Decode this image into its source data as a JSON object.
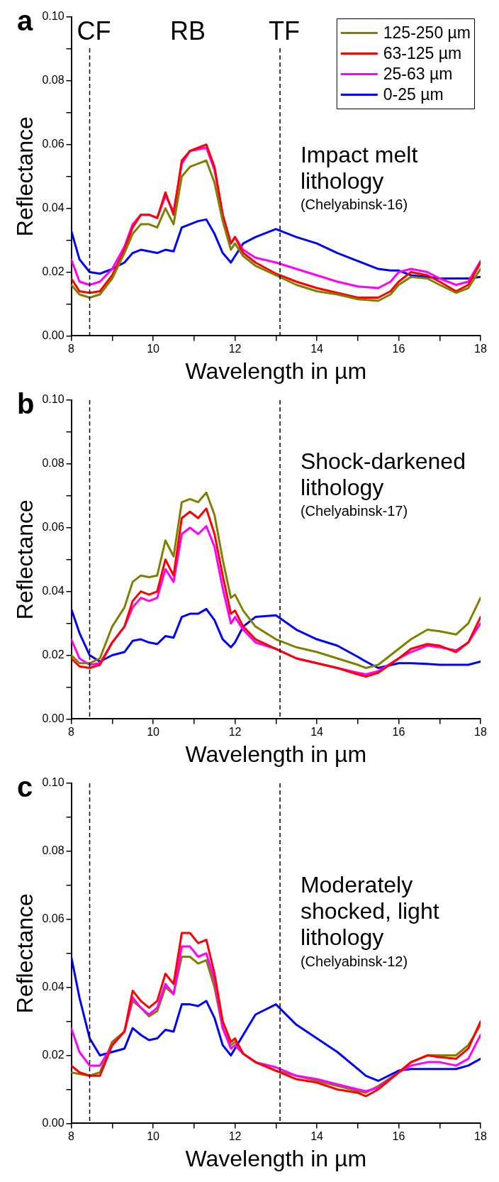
{
  "chart_data": [
    {
      "type": "line",
      "title": "a",
      "xlabel": "Wavelength in µm",
      "ylabel": "Reflectance",
      "x": [
        8,
        8.2,
        8.45,
        8.7,
        9,
        9.3,
        9.5,
        9.7,
        9.9,
        10.1,
        10.3,
        10.5,
        10.7,
        10.9,
        11.1,
        11.3,
        11.5,
        11.7,
        11.9,
        12,
        12.2,
        12.5,
        13,
        13.5,
        14,
        14.5,
        15,
        15.5,
        15.8,
        16,
        16.3,
        16.7,
        17,
        17.4,
        17.7,
        18
      ],
      "series": [
        {
          "name": "125-250 µm",
          "color": "#808000",
          "values": [
            0.016,
            0.013,
            0.012,
            0.013,
            0.018,
            0.026,
            0.032,
            0.035,
            0.035,
            0.034,
            0.04,
            0.035,
            0.05,
            0.053,
            0.054,
            0.055,
            0.048,
            0.036,
            0.027,
            0.029,
            0.025,
            0.022,
            0.019,
            0.016,
            0.014,
            0.013,
            0.0115,
            0.011,
            0.013,
            0.016,
            0.0185,
            0.018,
            0.016,
            0.0135,
            0.015,
            0.021
          ]
        },
        {
          "name": "63-125 µm",
          "color": "#ff0000",
          "values": [
            0.018,
            0.014,
            0.0135,
            0.014,
            0.019,
            0.027,
            0.034,
            0.038,
            0.038,
            0.037,
            0.045,
            0.038,
            0.055,
            0.058,
            0.059,
            0.06,
            0.053,
            0.038,
            0.029,
            0.031,
            0.026,
            0.023,
            0.0195,
            0.017,
            0.015,
            0.0135,
            0.012,
            0.012,
            0.014,
            0.017,
            0.02,
            0.019,
            0.017,
            0.014,
            0.016,
            0.023
          ]
        },
        {
          "name": "25-63 µm",
          "color": "#ff00ff",
          "values": [
            0.024,
            0.017,
            0.016,
            0.017,
            0.021,
            0.028,
            0.035,
            0.038,
            0.038,
            0.037,
            0.044,
            0.039,
            0.054,
            0.058,
            0.0585,
            0.059,
            0.052,
            0.038,
            0.029,
            0.031,
            0.027,
            0.0245,
            0.023,
            0.021,
            0.019,
            0.017,
            0.0155,
            0.015,
            0.017,
            0.02,
            0.021,
            0.02,
            0.018,
            0.016,
            0.017,
            0.0235
          ]
        },
        {
          "name": "0-25 µm",
          "color": "#0000ff",
          "values": [
            0.033,
            0.024,
            0.02,
            0.0195,
            0.021,
            0.023,
            0.026,
            0.027,
            0.0265,
            0.026,
            0.027,
            0.0265,
            0.034,
            0.035,
            0.036,
            0.0365,
            0.032,
            0.026,
            0.023,
            0.025,
            0.029,
            0.031,
            0.0335,
            0.031,
            0.029,
            0.026,
            0.0235,
            0.021,
            0.0205,
            0.0205,
            0.019,
            0.0185,
            0.018,
            0.018,
            0.018,
            0.0185
          ]
        }
      ],
      "xlim": [
        8,
        18
      ],
      "xticks": [
        8,
        {
          "value": 9,
          "label": null
        },
        10,
        {
          "value": 11,
          "label": null
        },
        12,
        {
          "value": 13,
          "label": null
        },
        14,
        {
          "value": 15,
          "label": null
        },
        16,
        {
          "value": 17,
          "label": null
        },
        18
      ],
      "ylim": [
        0,
        0.1
      ],
      "yticks": [
        {
          "value": 0,
          "label": "0.00"
        },
        {
          "value": 0.01,
          "label": null
        },
        {
          "value": 0.02,
          "label": "0.02"
        },
        {
          "value": 0.03,
          "label": null
        },
        {
          "value": 0.04,
          "label": "0.04"
        },
        {
          "value": 0.05,
          "label": null
        },
        {
          "value": 0.06,
          "label": "0.06"
        },
        {
          "value": 0.07,
          "label": null
        },
        {
          "value": 0.08,
          "label": "0.08"
        },
        {
          "value": 0.09,
          "label": null
        },
        {
          "value": 0.1,
          "label": "0.10"
        }
      ],
      "ref_lines": [
        {
          "axis": "x",
          "value": 8.45,
          "label": "CF",
          "line_style": "dashed",
          "color": "#000000"
        },
        {
          "axis": "x",
          "value": 13.1,
          "label": "TF",
          "line_style": "dashed",
          "color": "#000000"
        }
      ],
      "annotations": [
        "RB",
        "Impact melt lithology",
        "(Chelyabinsk-16)"
      ],
      "legend": "top right",
      "grid": false
    },
    {
      "type": "line",
      "title": "b",
      "xlabel": "Wavelength in µm",
      "ylabel": "Reflectance",
      "x": [
        8,
        8.2,
        8.45,
        8.7,
        9,
        9.3,
        9.5,
        9.7,
        9.9,
        10.1,
        10.3,
        10.5,
        10.7,
        10.9,
        11.1,
        11.3,
        11.5,
        11.7,
        11.9,
        12,
        12.2,
        12.5,
        13,
        13.5,
        14,
        14.5,
        15,
        15.2,
        15.5,
        16,
        16.3,
        16.7,
        17,
        17.4,
        17.7,
        18
      ],
      "series": [
        {
          "color": "#808000",
          "values": [
            0.02,
            0.0175,
            0.0175,
            0.019,
            0.029,
            0.035,
            0.043,
            0.045,
            0.0445,
            0.045,
            0.056,
            0.051,
            0.068,
            0.069,
            0.068,
            0.071,
            0.064,
            0.05,
            0.038,
            0.039,
            0.034,
            0.029,
            0.025,
            0.0225,
            0.021,
            0.019,
            0.017,
            0.016,
            0.017,
            0.022,
            0.025,
            0.028,
            0.0275,
            0.0265,
            0.03,
            0.038
          ]
        },
        {
          "color": "#ff0000",
          "values": [
            0.019,
            0.0165,
            0.016,
            0.017,
            0.024,
            0.029,
            0.037,
            0.04,
            0.039,
            0.04,
            0.05,
            0.045,
            0.063,
            0.065,
            0.063,
            0.066,
            0.058,
            0.045,
            0.033,
            0.034,
            0.029,
            0.025,
            0.022,
            0.019,
            0.0175,
            0.016,
            0.014,
            0.0133,
            0.0145,
            0.019,
            0.022,
            0.0235,
            0.023,
            0.021,
            0.024,
            0.032
          ]
        },
        {
          "color": "#ff00ff",
          "values": [
            0.025,
            0.019,
            0.017,
            0.0175,
            0.024,
            0.029,
            0.035,
            0.038,
            0.037,
            0.038,
            0.047,
            0.043,
            0.058,
            0.06,
            0.058,
            0.0605,
            0.054,
            0.041,
            0.03,
            0.032,
            0.028,
            0.024,
            0.022,
            0.019,
            0.0175,
            0.016,
            0.0145,
            0.014,
            0.015,
            0.019,
            0.021,
            0.023,
            0.0225,
            0.0215,
            0.024,
            0.03
          ]
        },
        {
          "color": "#0000ff",
          "values": [
            0.0345,
            0.027,
            0.02,
            0.018,
            0.02,
            0.021,
            0.0245,
            0.025,
            0.024,
            0.0235,
            0.026,
            0.0255,
            0.032,
            0.033,
            0.033,
            0.0345,
            0.031,
            0.025,
            0.0225,
            0.024,
            0.029,
            0.032,
            0.0325,
            0.028,
            0.025,
            0.023,
            0.0195,
            0.018,
            0.016,
            0.0175,
            0.0175,
            0.0173,
            0.017,
            0.017,
            0.017,
            0.018
          ]
        }
      ],
      "xlim": [
        8,
        18
      ],
      "xticks": [
        8,
        {
          "value": 9,
          "label": null
        },
        10,
        {
          "value": 11,
          "label": null
        },
        12,
        {
          "value": 13,
          "label": null
        },
        14,
        {
          "value": 15,
          "label": null
        },
        16,
        {
          "value": 17,
          "label": null
        },
        18
      ],
      "ylim": [
        0,
        0.1
      ],
      "yticks": [
        {
          "value": 0,
          "label": "0.00"
        },
        {
          "value": 0.01,
          "label": null
        },
        {
          "value": 0.02,
          "label": "0.02"
        },
        {
          "value": 0.03,
          "label": null
        },
        {
          "value": 0.04,
          "label": "0.04"
        },
        {
          "value": 0.05,
          "label": null
        },
        {
          "value": 0.06,
          "label": "0.06"
        },
        {
          "value": 0.07,
          "label": null
        },
        {
          "value": 0.08,
          "label": "0.08"
        },
        {
          "value": 0.09,
          "label": null
        },
        {
          "value": 0.1,
          "label": "0.10"
        }
      ],
      "ref_lines": [
        {
          "axis": "x",
          "value": 8.45,
          "line_style": "dashed",
          "color": "#000000"
        },
        {
          "axis": "x",
          "value": 13.1,
          "line_style": "dashed",
          "color": "#000000"
        }
      ],
      "annotations": [
        "Shock-darkened lithology",
        "(Chelyabinsk-17)"
      ],
      "grid": false
    },
    {
      "type": "line",
      "title": "c",
      "xlabel": "Wavelength in µm",
      "ylabel": "Reflectance",
      "x": [
        8,
        8.2,
        8.45,
        8.7,
        9,
        9.3,
        9.5,
        9.7,
        9.9,
        10.1,
        10.3,
        10.5,
        10.7,
        10.9,
        11.1,
        11.3,
        11.5,
        11.7,
        11.9,
        12,
        12.2,
        12.5,
        13,
        13.5,
        14,
        14.5,
        15,
        15.2,
        15.5,
        16,
        16.3,
        16.7,
        17,
        17.4,
        17.7,
        18
      ],
      "series": [
        {
          "color": "#ff0000",
          "values": [
            0.017,
            0.015,
            0.014,
            0.014,
            0.023,
            0.027,
            0.039,
            0.036,
            0.034,
            0.036,
            0.044,
            0.041,
            0.056,
            0.056,
            0.053,
            0.054,
            0.044,
            0.03,
            0.024,
            0.025,
            0.0205,
            0.018,
            0.0155,
            0.013,
            0.012,
            0.01,
            0.009,
            0.008,
            0.01,
            0.015,
            0.018,
            0.02,
            0.0195,
            0.019,
            0.022,
            0.03
          ]
        },
        {
          "color": "#ff00ff",
          "values": [
            0.028,
            0.021,
            0.017,
            0.017,
            0.023,
            0.027,
            0.037,
            0.034,
            0.032,
            0.034,
            0.041,
            0.038,
            0.052,
            0.052,
            0.049,
            0.05,
            0.042,
            0.028,
            0.022,
            0.023,
            0.0205,
            0.018,
            0.0165,
            0.014,
            0.013,
            0.0115,
            0.01,
            0.0095,
            0.0105,
            0.015,
            0.017,
            0.018,
            0.018,
            0.017,
            0.019,
            0.026
          ]
        },
        {
          "color": "#0000ff",
          "values": [
            0.049,
            0.037,
            0.025,
            0.02,
            0.021,
            0.022,
            0.028,
            0.026,
            0.0245,
            0.025,
            0.0275,
            0.027,
            0.035,
            0.035,
            0.0345,
            0.036,
            0.031,
            0.023,
            0.02,
            0.022,
            0.026,
            0.032,
            0.035,
            0.029,
            0.025,
            0.021,
            0.016,
            0.014,
            0.0125,
            0.0155,
            0.016,
            0.016,
            0.016,
            0.016,
            0.017,
            0.019
          ]
        },
        {
          "color": "#808000",
          "values": [
            0.015,
            0.0145,
            0.014,
            0.015,
            0.024,
            0.027,
            0.036,
            0.034,
            0.0315,
            0.033,
            0.04,
            0.038,
            0.049,
            0.049,
            0.047,
            0.048,
            0.04,
            0.028,
            0.023,
            0.024,
            0.0205,
            0.018,
            0.0155,
            0.014,
            0.0125,
            0.011,
            0.0095,
            0.009,
            0.011,
            0.015,
            0.018,
            0.02,
            0.02,
            0.02,
            0.023,
            0.029
          ]
        }
      ],
      "xlim": [
        8,
        18
      ],
      "xticks": [
        8,
        {
          "value": 9,
          "label": null
        },
        10,
        {
          "value": 11,
          "label": null
        },
        12,
        {
          "value": 13,
          "label": null
        },
        14,
        {
          "value": 15,
          "label": null
        },
        16,
        {
          "value": 17,
          "label": null
        },
        18
      ],
      "ylim": [
        0,
        0.1
      ],
      "yticks": [
        {
          "value": 0,
          "label": "0.00"
        },
        {
          "value": 0.01,
          "label": null
        },
        {
          "value": 0.02,
          "label": "0.02"
        },
        {
          "value": 0.03,
          "label": null
        },
        {
          "value": 0.04,
          "label": "0.04"
        },
        {
          "value": 0.05,
          "label": null
        },
        {
          "value": 0.06,
          "label": "0.06"
        },
        {
          "value": 0.07,
          "label": null
        },
        {
          "value": 0.08,
          "label": "0.08"
        },
        {
          "value": 0.09,
          "label": null
        },
        {
          "value": 0.1,
          "label": "0.10"
        }
      ],
      "ref_lines": [
        {
          "axis": "x",
          "value": 8.45,
          "line_style": "dashed",
          "color": "#000000"
        },
        {
          "axis": "x",
          "value": 13.1,
          "line_style": "dashed",
          "color": "#000000"
        }
      ],
      "annotations": [
        "Moderately shocked, light lithology",
        "(Chelyabinsk-12)"
      ],
      "grid": false
    }
  ]
}
